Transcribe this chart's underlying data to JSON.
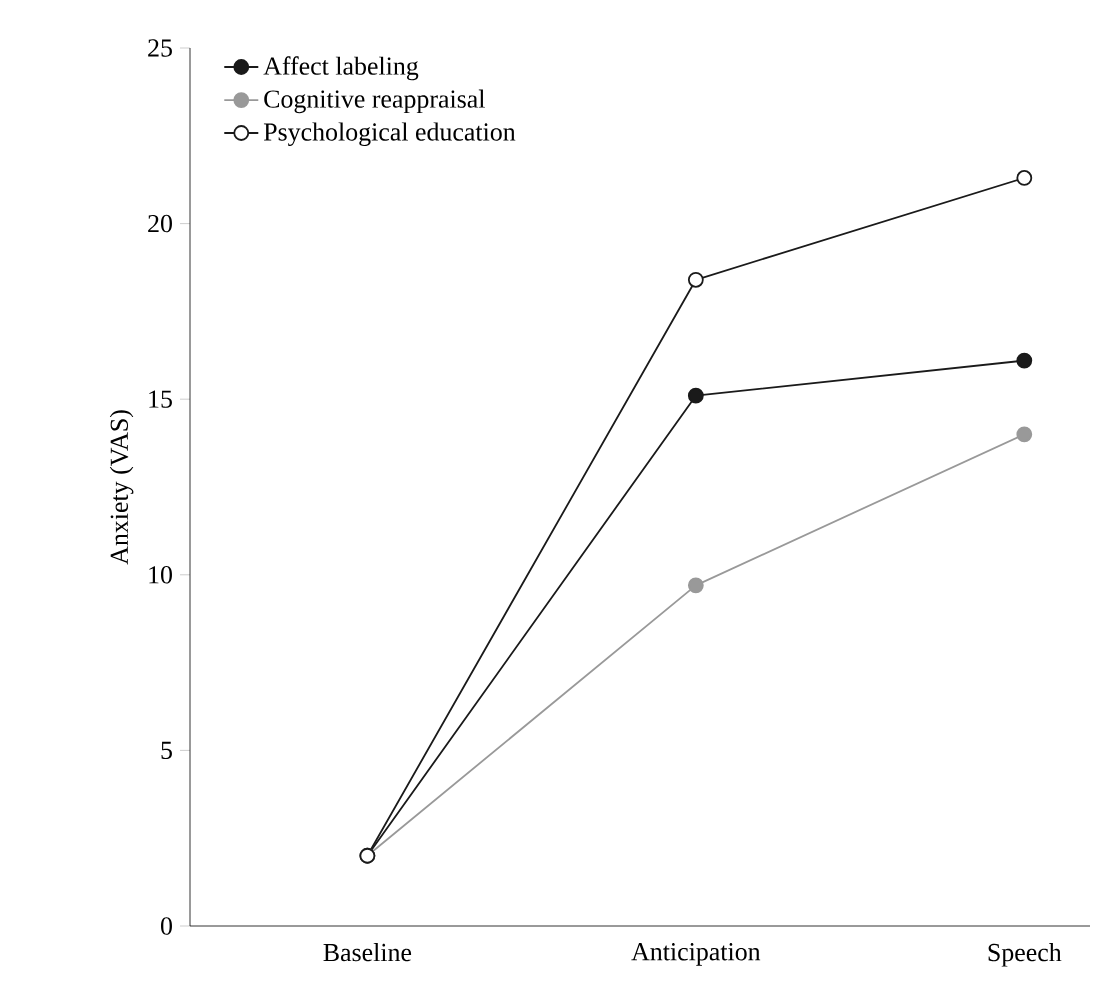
{
  "chart_data": {
    "type": "line",
    "ylabel": "Anxiety (VAS)",
    "categories": [
      "Baseline",
      "Anticipation",
      "Speech"
    ],
    "series": [
      {
        "name": "Affect labeling",
        "color": "#1a1a1a",
        "values": [
          2.0,
          15.1,
          16.1
        ]
      },
      {
        "name": "Cognitive reappraisal",
        "color": "#999999",
        "values": [
          2.0,
          9.7,
          14.0
        ]
      },
      {
        "name": "Psychological education",
        "color": "#1a1a1a",
        "colors": [
          "#ffffff",
          "#ffffff",
          "#ffffff"
        ],
        "values": [
          2.0,
          18.4,
          21.3
        ]
      }
    ],
    "ylim": [
      0,
      25
    ],
    "yticks": [
      0,
      5,
      10,
      15,
      20,
      25
    ],
    "marker": "circle",
    "line_style": "solid",
    "legend": "top left",
    "grid": false
  }
}
